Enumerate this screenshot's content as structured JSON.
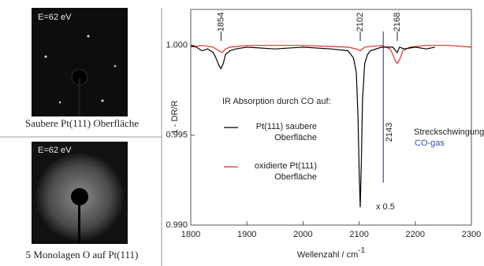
{
  "panels": [
    {
      "energy_label": "E=62 eV",
      "caption": "Saubere Pt(111) Oberfläche"
    },
    {
      "energy_label": "E=62 eV",
      "caption": "5 Monolagen O auf Pt(111)"
    }
  ],
  "chart_data": {
    "type": "line",
    "x_label": "Wellenzahl / cm",
    "x_label_sup": "-1",
    "y_label": "1 - DR/R",
    "xlim": [
      1800,
      2300
    ],
    "xticks": [
      1800,
      1900,
      2000,
      2100,
      2200,
      2300
    ],
    "ylim": [
      0.99,
      1.002
    ],
    "yticks": [
      {
        "value": 0.99,
        "label": "0.990"
      },
      {
        "value": 0.995,
        "label": "0.995"
      },
      {
        "value": 1.0,
        "label": "1.000"
      }
    ],
    "legend_title": "IR Absorption durch CO auf:",
    "series": [
      {
        "name": "Pt(111) saubere Oberfläche",
        "color": "#000000",
        "x": [
          1800,
          1810,
          1820,
          1830,
          1840,
          1845,
          1850,
          1854,
          1858,
          1862,
          1870,
          1880,
          1900,
          1950,
          2000,
          2050,
          2080,
          2090,
          2095,
          2098,
          2100,
          2102,
          2104,
          2106,
          2110,
          2115,
          2120,
          2140,
          2160,
          2165,
          2168,
          2172,
          2180,
          2200,
          2220,
          2235
        ],
        "values": [
          1.0,
          0.9999,
          0.9997,
          0.9998,
          0.9996,
          0.9993,
          0.9989,
          0.9987,
          0.999,
          0.9995,
          0.9997,
          0.9998,
          0.9999,
          0.9998,
          0.9999,
          0.9998,
          0.9997,
          0.9993,
          0.9985,
          0.996,
          0.993,
          0.991,
          0.9935,
          0.997,
          0.999,
          0.9995,
          0.9997,
          0.9999,
          0.9999,
          0.9997,
          0.9996,
          0.9999,
          0.9998,
          0.9999,
          0.9998,
          0.9999
        ]
      },
      {
        "name": "oxidierte Pt(111) Oberfläche",
        "color": "#d9312b",
        "x": [
          1800,
          1820,
          1840,
          1850,
          1856,
          1862,
          1870,
          1900,
          2000,
          2080,
          2095,
          2102,
          2110,
          2140,
          2155,
          2160,
          2165,
          2168,
          2172,
          2178,
          2190,
          2220,
          2260,
          2300
        ],
        "values": [
          0.9999,
          1.0,
          0.9999,
          0.9997,
          0.9996,
          0.9998,
          0.9999,
          1.0,
          1.0,
          0.9999,
          0.9998,
          0.9997,
          0.9999,
          1.0,
          0.9998,
          0.9995,
          0.9991,
          0.999,
          0.9992,
          0.9997,
          0.9999,
          1.0,
          1.0,
          0.9999
        ]
      }
    ],
    "peak_labels": [
      1854,
      2102,
      2168
    ],
    "reference_line": {
      "x": 2143,
      "color": "#3a4fa0"
    },
    "scale_note": "x 0.5",
    "gas_note": "Streckschwingung",
    "gas_note_2": "CO-gas",
    "gas_note_2_color": "#3a4fa0"
  }
}
